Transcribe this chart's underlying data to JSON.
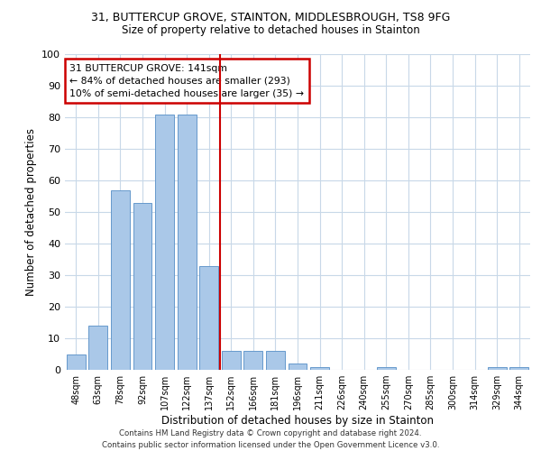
{
  "title1": "31, BUTTERCUP GROVE, STAINTON, MIDDLESBROUGH, TS8 9FG",
  "title2": "Size of property relative to detached houses in Stainton",
  "xlabel": "Distribution of detached houses by size in Stainton",
  "ylabel": "Number of detached properties",
  "categories": [
    "48sqm",
    "63sqm",
    "78sqm",
    "92sqm",
    "107sqm",
    "122sqm",
    "137sqm",
    "152sqm",
    "166sqm",
    "181sqm",
    "196sqm",
    "211sqm",
    "226sqm",
    "240sqm",
    "255sqm",
    "270sqm",
    "285sqm",
    "300sqm",
    "314sqm",
    "329sqm",
    "344sqm"
  ],
  "values": [
    5,
    14,
    57,
    53,
    81,
    81,
    33,
    6,
    6,
    6,
    2,
    1,
    0,
    0,
    1,
    0,
    0,
    0,
    0,
    1,
    1
  ],
  "bar_color": "#aac8e8",
  "bar_edge_color": "#6699cc",
  "reference_line_x": 6.5,
  "annotation_title": "31 BUTTERCUP GROVE: 141sqm",
  "annotation_line1": "← 84% of detached houses are smaller (293)",
  "annotation_line2": "10% of semi-detached houses are larger (35) →",
  "annotation_box_color": "#cc0000",
  "footer1": "Contains HM Land Registry data © Crown copyright and database right 2024.",
  "footer2": "Contains public sector information licensed under the Open Government Licence v3.0.",
  "ylim": [
    0,
    100
  ],
  "yticks": [
    0,
    10,
    20,
    30,
    40,
    50,
    60,
    70,
    80,
    90,
    100
  ],
  "background_color": "#ffffff",
  "grid_color": "#c8d8e8"
}
